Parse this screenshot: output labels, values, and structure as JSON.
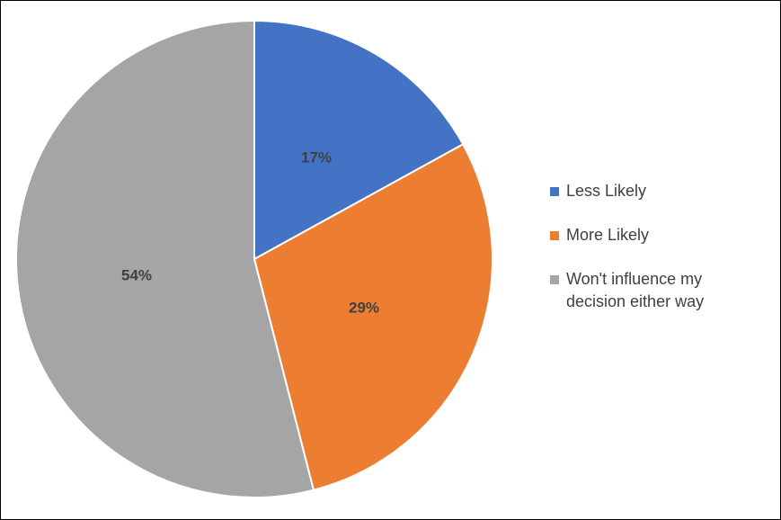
{
  "chart_data": {
    "type": "pie",
    "slices": [
      {
        "label": "Less Likely",
        "value": 17,
        "display": "17%",
        "color": "#4472C4"
      },
      {
        "label": "More Likely",
        "value": 29,
        "display": "29%",
        "color": "#ED7D31"
      },
      {
        "label": "Won't influence my decision either way",
        "value": 54,
        "display": "54%",
        "color": "#A5A5A5"
      }
    ],
    "start_angle": "12 o'clock",
    "direction": "clockwise",
    "legend_placement": "right"
  }
}
